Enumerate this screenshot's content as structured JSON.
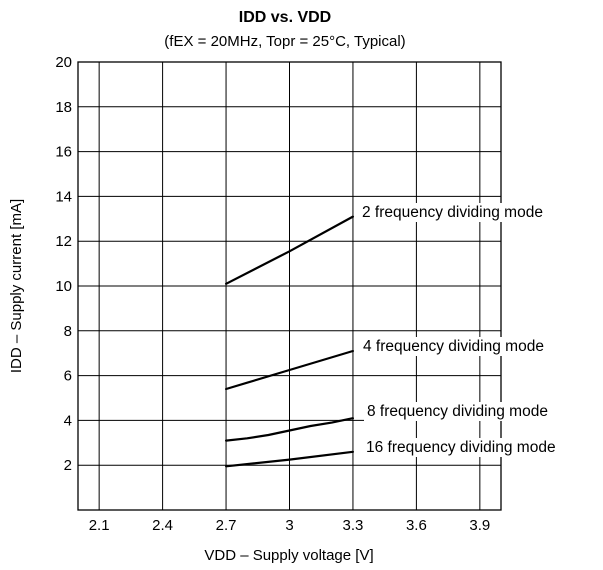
{
  "chart_data": {
    "type": "line",
    "title": "IDD vs. VDD",
    "subtitle": "(fEX = 20MHz, Topr = 25°C, Typical)",
    "xlabel": "VDD – Supply voltage [V]",
    "ylabel": "IDD – Supply current [mA]",
    "xlim": [
      2.0,
      4.0
    ],
    "ylim": [
      0,
      20
    ],
    "x_ticks": [
      "2.1",
      "2.4",
      "2.7",
      "3",
      "3.3",
      "3.6",
      "3.9"
    ],
    "x_tick_values": [
      2.1,
      2.4,
      2.7,
      3.0,
      3.3,
      3.6,
      3.9
    ],
    "y_ticks": [
      "2",
      "4",
      "6",
      "8",
      "10",
      "12",
      "14",
      "16",
      "18",
      "20"
    ],
    "y_tick_values": [
      2,
      4,
      6,
      8,
      10,
      12,
      14,
      16,
      18,
      20
    ],
    "grid": true,
    "series": [
      {
        "name": "2 frequency dividing mode",
        "x": [
          2.7,
          3.0,
          3.3
        ],
        "y": [
          10.1,
          11.55,
          13.1
        ]
      },
      {
        "name": "4 frequency dividing mode",
        "x": [
          2.7,
          3.0,
          3.3
        ],
        "y": [
          5.4,
          6.25,
          7.1
        ]
      },
      {
        "name": "8 frequency dividing mode",
        "x": [
          2.7,
          2.8,
          2.9,
          3.0,
          3.1,
          3.2,
          3.3
        ],
        "y": [
          3.1,
          3.2,
          3.35,
          3.55,
          3.75,
          3.9,
          4.1
        ]
      },
      {
        "name": "16 frequency dividing mode",
        "x": [
          2.7,
          3.0,
          3.3
        ],
        "y": [
          1.95,
          2.25,
          2.6
        ]
      }
    ]
  }
}
